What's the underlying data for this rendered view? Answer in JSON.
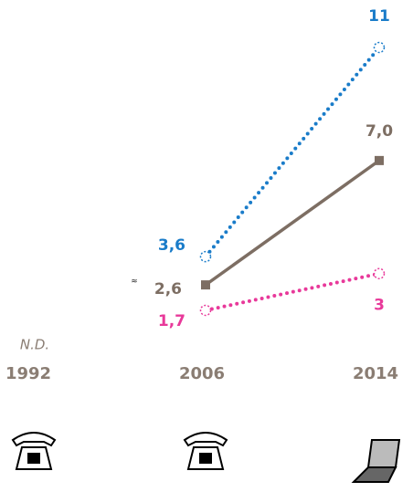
{
  "chart_data": {
    "type": "line",
    "categories": [
      "1992",
      "2006",
      "2014"
    ],
    "series": [
      {
        "name": null,
        "color": "#1a7cc9",
        "style": "dotted",
        "marker": "circle",
        "values": [
          null,
          3.6,
          11
        ],
        "value_labels": [
          null,
          "3,6",
          "11"
        ]
      },
      {
        "name": null,
        "color": "#7d6e63",
        "style": "solid",
        "marker": "square",
        "values": [
          null,
          2.6,
          7.0
        ],
        "value_labels": [
          null,
          "2,6",
          "7,0"
        ]
      },
      {
        "name": null,
        "color": "#e8399a",
        "style": "dotted",
        "marker": "circle",
        "values": [
          null,
          1.7,
          3
        ],
        "value_labels": [
          null,
          "1,7",
          "3"
        ]
      }
    ],
    "annotations": [
      "N.D.",
      "≈"
    ]
  }
}
